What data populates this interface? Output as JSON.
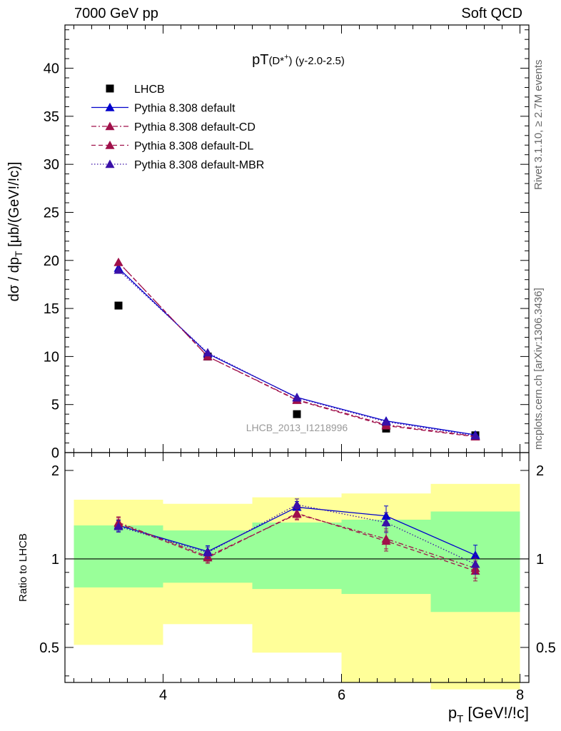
{
  "header": {
    "left": "7000 GeV pp",
    "right": "Soft QCD"
  },
  "side_labels": {
    "rivet": "Rivet 3.1.10, ≥ 2.7M events",
    "mcplots": "mcplots.cern.ch [arXiv:1306.3436]"
  },
  "colors": {
    "default": "#0000cc",
    "cd": "#a0104a",
    "dl": "#a0104a",
    "mbr": "#3a10a8",
    "data": "#000000",
    "band_inner": "#99ff99",
    "band_outer": "#ffff99"
  },
  "chart_data": [
    {
      "type": "line",
      "title": "pT(D*+) (y-2.0-2.5)",
      "ylabel": "dσ / dp_T [μb/(GeV!/!c)]",
      "xlabel": "",
      "watermark": "LHCB_2013_I1218996",
      "xlim": [
        2.9,
        8.1
      ],
      "ylim": [
        0,
        44.5
      ],
      "yticks": [
        "0",
        "5",
        "10",
        "15",
        "20",
        "25",
        "30",
        "35",
        "40"
      ],
      "legend_position": "top-left",
      "x": [
        3.5,
        4.5,
        5.5,
        6.5,
        7.5
      ],
      "series": [
        {
          "name": "LHCB",
          "style": "marker",
          "values": [
            15.3,
            10.0,
            4.0,
            2.5,
            1.8
          ]
        },
        {
          "name": "Pythia 8.308 default",
          "style": "solid",
          "values": [
            19.2,
            10.3,
            5.75,
            3.3,
            1.85
          ]
        },
        {
          "name": "Pythia 8.308 default-CD",
          "style": "dashdot",
          "values": [
            19.8,
            10.0,
            5.5,
            2.9,
            1.7
          ]
        },
        {
          "name": "Pythia 8.308 default-DL",
          "style": "dashed",
          "values": [
            19.8,
            10.0,
            5.45,
            2.8,
            1.65
          ]
        },
        {
          "name": "Pythia 8.308 default-MBR",
          "style": "dotted",
          "values": [
            19.0,
            10.4,
            5.7,
            3.2,
            1.75
          ]
        }
      ]
    },
    {
      "type": "line",
      "ylabel": "Ratio to LHCB",
      "xlabel": "p_T [GeV!/!c]",
      "xlim": [
        2.9,
        8.1
      ],
      "ylim": [
        0.38,
        2.3
      ],
      "yscale": "log",
      "yticks": [
        "0.5",
        "1",
        "2"
      ],
      "xticks": [
        "4",
        "6",
        "8"
      ],
      "bin_edges": [
        3,
        4,
        5,
        6,
        7,
        8
      ],
      "band_inner": {
        "low": [
          0.8,
          0.83,
          0.79,
          0.76,
          0.66
        ],
        "high": [
          1.3,
          1.25,
          1.33,
          1.36,
          1.45
        ]
      },
      "band_outer": {
        "low": [
          0.51,
          0.6,
          0.48,
          0.38,
          0.36
        ],
        "high": [
          1.59,
          1.54,
          1.62,
          1.67,
          1.8
        ]
      },
      "x": [
        3.5,
        4.5,
        5.5,
        6.5,
        7.5
      ],
      "series": [
        {
          "name": "Pythia 8.308 default",
          "style": "solid",
          "values": [
            1.3,
            1.06,
            1.5,
            1.4,
            1.03
          ]
        },
        {
          "name": "Pythia 8.308 default-CD",
          "style": "dashdot",
          "values": [
            1.33,
            1.02,
            1.42,
            1.17,
            0.93
          ]
        },
        {
          "name": "Pythia 8.308 default-DL",
          "style": "dashed",
          "values": [
            1.32,
            1.01,
            1.43,
            1.15,
            0.91
          ]
        },
        {
          "name": "Pythia 8.308 default-MBR",
          "style": "dotted",
          "values": [
            1.29,
            1.05,
            1.53,
            1.33,
            0.96
          ]
        }
      ]
    }
  ]
}
